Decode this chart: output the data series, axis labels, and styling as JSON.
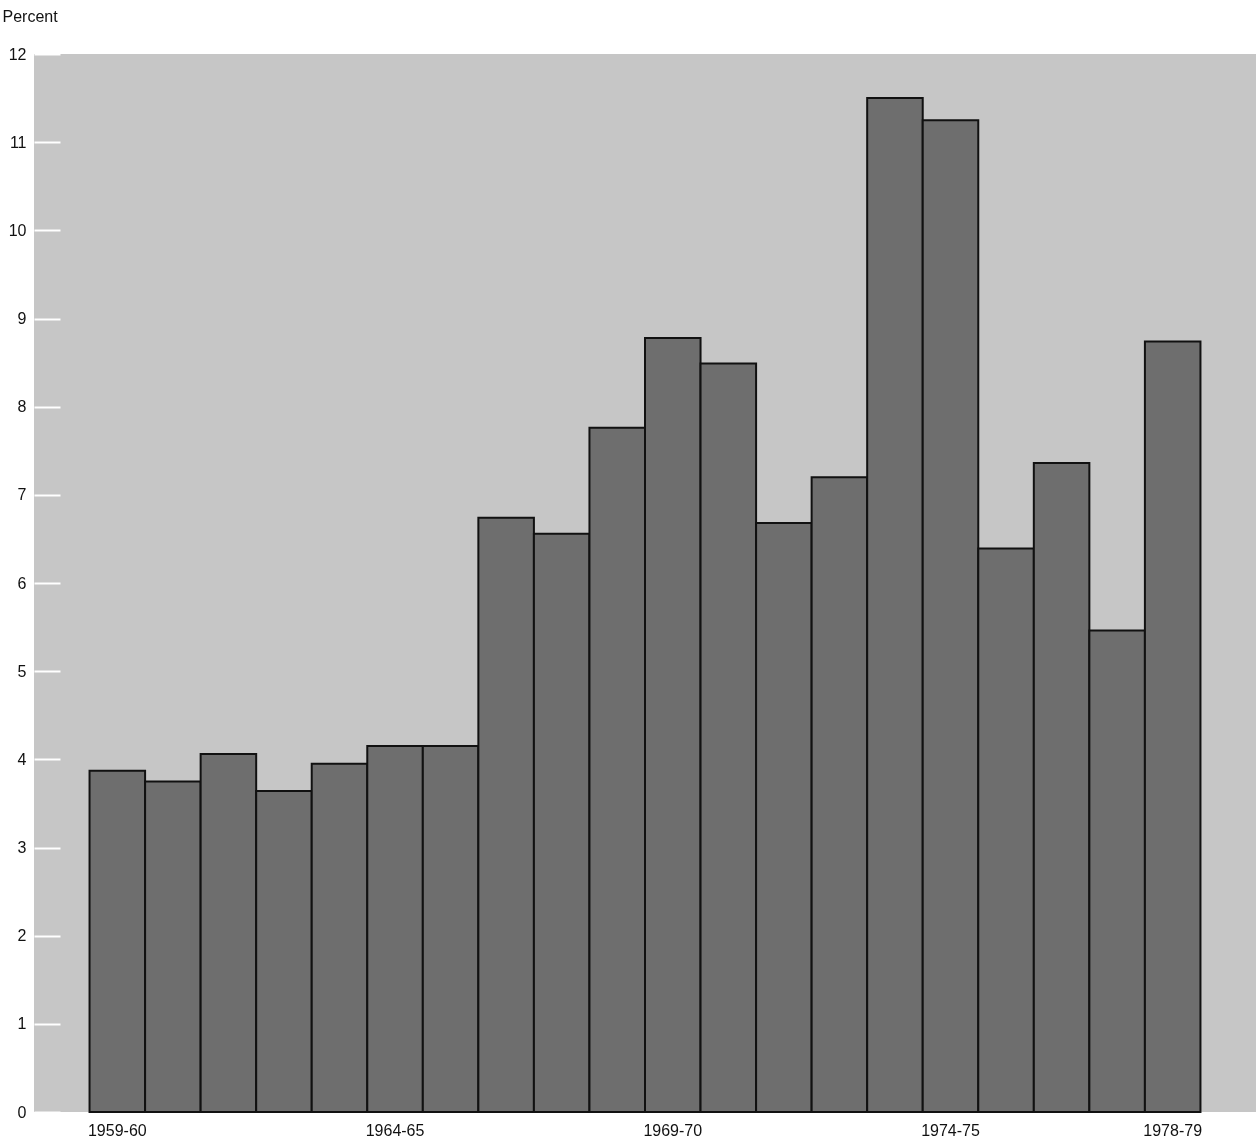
{
  "chart_data": {
    "type": "bar",
    "ylabel": "Percent",
    "categories": [
      "1959-60",
      null,
      null,
      null,
      null,
      "1964-65",
      null,
      null,
      null,
      null,
      "1969-70",
      null,
      null,
      null,
      null,
      "1974-75",
      null,
      null,
      null,
      "1978-79"
    ],
    "values": [
      3.87,
      3.75,
      4.06,
      3.64,
      3.95,
      4.15,
      4.15,
      6.74,
      6.56,
      7.76,
      8.78,
      8.49,
      6.68,
      7.2,
      11.5,
      11.25,
      6.39,
      7.36,
      5.46,
      8.74
    ],
    "color": "#6e6e6e",
    "ylim": [
      0,
      12
    ],
    "yticks": [
      0,
      1,
      2,
      3,
      4,
      5,
      6,
      7,
      8,
      9,
      10,
      11,
      12
    ]
  }
}
